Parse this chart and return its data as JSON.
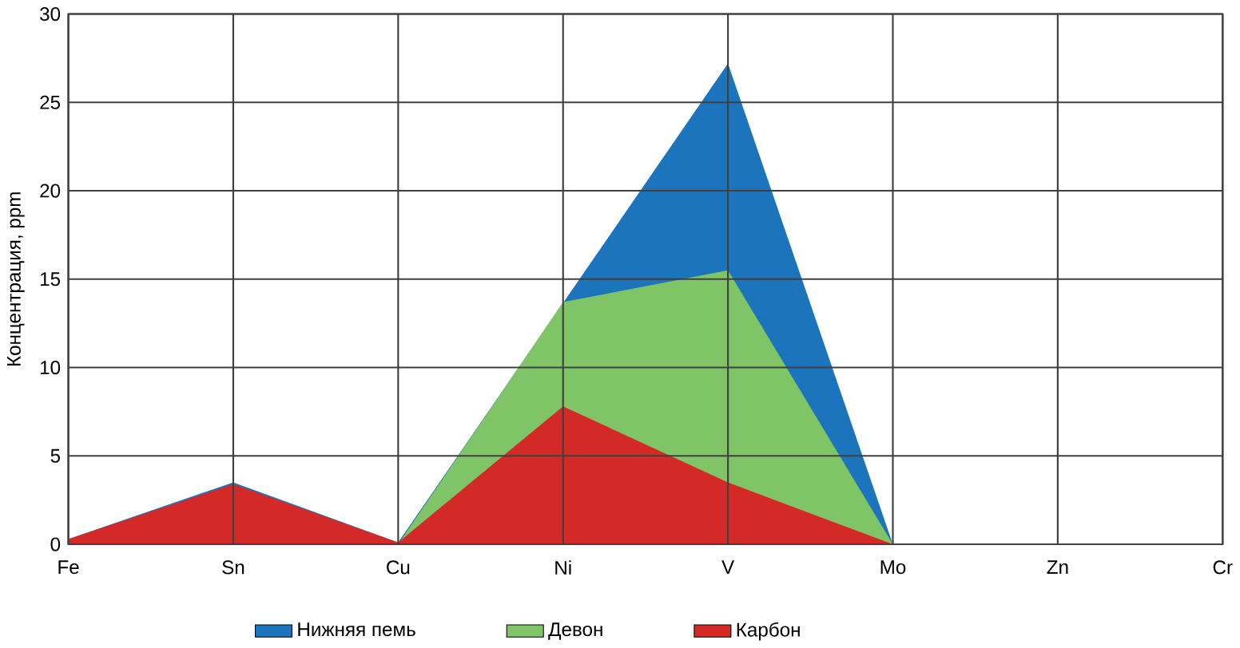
{
  "chart_data": {
    "type": "area",
    "ylabel": "Концентрация, ppm",
    "categories": [
      "Fe",
      "Sn",
      "Cu",
      "Ni",
      "V",
      "Mo",
      "Zn",
      "Cr"
    ],
    "ylim": [
      0,
      30
    ],
    "yticks": [
      0,
      5,
      10,
      15,
      20,
      25,
      30
    ],
    "grid": true,
    "legend": "bottom",
    "series": [
      {
        "name": "Нижняя пемь",
        "color": "#1c75bc",
        "values": [
          0.3,
          3.5,
          0.1,
          null,
          27.2,
          0,
          0,
          0
        ]
      },
      {
        "name": "Девон",
        "color": "#7fc467",
        "values": [
          null,
          null,
          0,
          13.7,
          15.5,
          0,
          null,
          null
        ]
      },
      {
        "name": "Карбон",
        "color": "#d42a27",
        "values": [
          0.3,
          3.4,
          0.1,
          7.8,
          3.5,
          0,
          0,
          0
        ]
      }
    ]
  }
}
